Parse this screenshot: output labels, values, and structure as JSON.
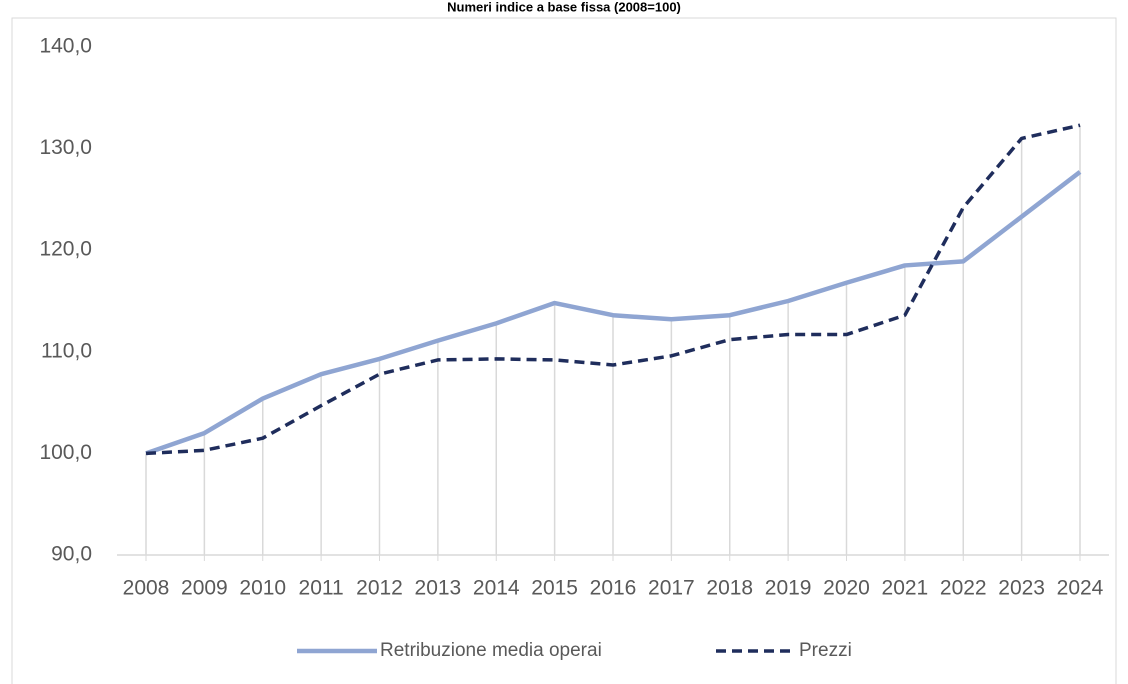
{
  "chart_data": {
    "type": "line",
    "title": "Numeri indice a base fissa (2008=100)",
    "categories": [
      "2008",
      "2009",
      "2010",
      "2011",
      "2012",
      "2013",
      "2014",
      "2015",
      "2016",
      "2017",
      "2018",
      "2019",
      "2020",
      "2021",
      "2022",
      "2023",
      "2024"
    ],
    "series": [
      {
        "name": "Retribuzione media operai",
        "color": "#8fa5d2",
        "dash": "solid",
        "values": [
          100.0,
          102.0,
          105.4,
          107.8,
          109.3,
          111.1,
          112.8,
          114.8,
          113.6,
          113.2,
          113.6,
          115.0,
          116.8,
          118.5,
          118.9,
          123.3,
          127.7
        ]
      },
      {
        "name": "Prezzi",
        "color": "#1f2d5c",
        "dash": "dashed",
        "values": [
          100.0,
          100.3,
          101.5,
          104.7,
          107.8,
          109.2,
          109.3,
          109.2,
          108.7,
          109.6,
          111.2,
          111.7,
          111.7,
          113.6,
          124.2,
          131.0,
          132.3
        ]
      }
    ],
    "ylim": [
      90,
      140
    ],
    "yticks": [
      {
        "value": 90,
        "label": "90,0"
      },
      {
        "value": 100,
        "label": "100,0"
      },
      {
        "value": 110,
        "label": "110,0"
      },
      {
        "value": 120,
        "label": "120,0"
      },
      {
        "value": 130,
        "label": "130,0"
      },
      {
        "value": 140,
        "label": "140,0"
      }
    ],
    "grid": false,
    "drop_lines": true,
    "legend": "bottom"
  }
}
